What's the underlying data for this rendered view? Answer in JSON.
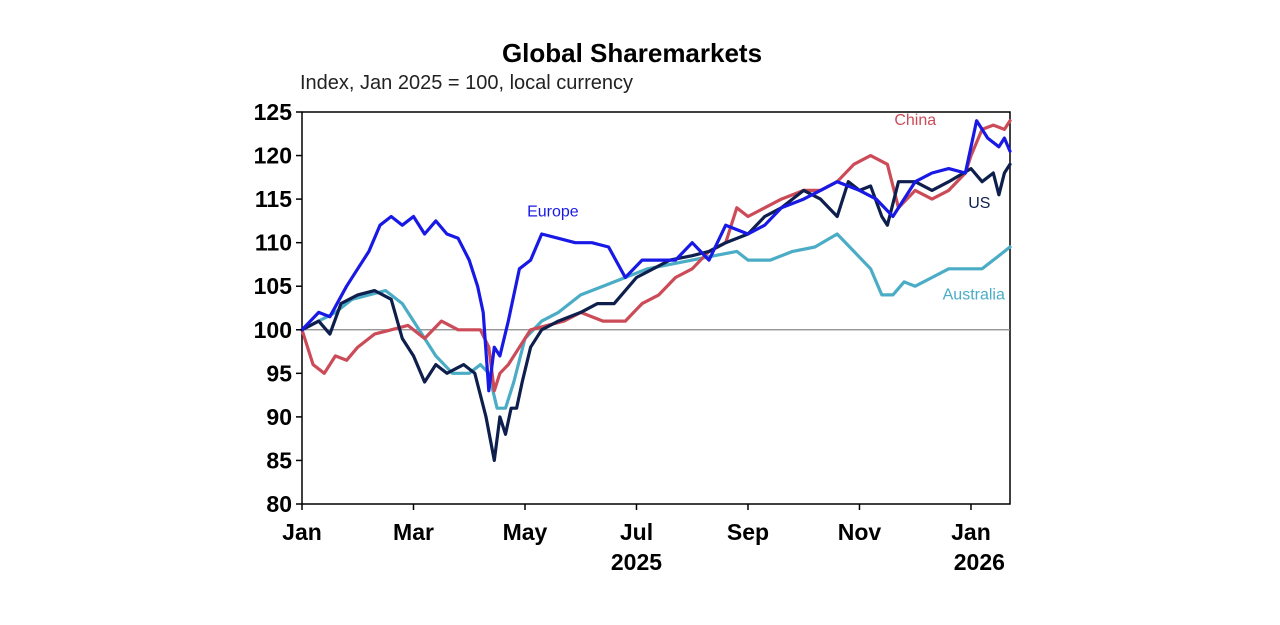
{
  "chart_data": {
    "type": "line",
    "title": "Global Sharemarkets",
    "subtitle": "Index, Jan 2025 = 100, local currency",
    "xlabel": "",
    "ylabel": "",
    "ylim": [
      80,
      125
    ],
    "yticks": [
      "125",
      "120",
      "115",
      "110",
      "105",
      "100",
      "95",
      "90",
      "85",
      "80"
    ],
    "ytick_values": [
      125,
      120,
      115,
      110,
      105,
      100,
      95,
      90,
      85,
      80
    ],
    "xlim": [
      0,
      12.7
    ],
    "x_units": "months since Jan 2025",
    "xticks": [
      {
        "label": "Jan",
        "x": 0
      },
      {
        "label": "Mar",
        "x": 2
      },
      {
        "label": "May",
        "x": 4
      },
      {
        "label": "Jul",
        "x": 6
      },
      {
        "label": "Sep",
        "x": 8
      },
      {
        "label": "Nov",
        "x": 10
      },
      {
        "label": "Jan",
        "x": 12
      }
    ],
    "year_labels": [
      {
        "label": "2025",
        "x": 6
      },
      {
        "label": "2026",
        "x": 12.15
      }
    ],
    "reference_line": 100,
    "grid": false,
    "series": [
      {
        "name": "US",
        "color": "#0e1f4d",
        "x": [
          0,
          0.3,
          0.5,
          0.7,
          1.0,
          1.3,
          1.6,
          1.8,
          2.0,
          2.2,
          2.4,
          2.6,
          2.9,
          3.1,
          3.3,
          3.45,
          3.55,
          3.65,
          3.75,
          3.85,
          3.95,
          4.1,
          4.3,
          4.6,
          5.0,
          5.3,
          5.6,
          6.0,
          6.3,
          6.6,
          7.0,
          7.3,
          7.6,
          8.0,
          8.3,
          8.6,
          9.0,
          9.3,
          9.6,
          9.8,
          10.0,
          10.2,
          10.4,
          10.5,
          10.7,
          11.0,
          11.3,
          11.6,
          12.0,
          12.2,
          12.4,
          12.5,
          12.6,
          12.7
        ],
        "y": [
          100,
          101,
          99.5,
          103,
          104,
          104.5,
          103.5,
          99,
          97,
          94,
          96,
          95,
          96,
          95,
          90,
          85,
          90,
          88,
          91,
          91,
          94,
          98,
          100,
          101,
          102,
          103,
          103,
          106,
          107,
          108,
          108.5,
          109,
          110,
          111,
          113,
          114,
          116,
          115,
          113,
          117,
          116,
          116.5,
          113,
          112,
          117,
          117,
          116,
          117,
          118.5,
          117,
          118,
          115.5,
          118,
          119
        ]
      },
      {
        "name": "Europe",
        "color": "#1919e6",
        "x": [
          0,
          0.3,
          0.5,
          0.8,
          1.0,
          1.2,
          1.4,
          1.6,
          1.8,
          2.0,
          2.2,
          2.4,
          2.6,
          2.8,
          3.0,
          3.15,
          3.25,
          3.35,
          3.45,
          3.55,
          3.7,
          3.9,
          4.1,
          4.3,
          4.6,
          4.9,
          5.2,
          5.5,
          5.8,
          6.1,
          6.4,
          6.7,
          7.0,
          7.3,
          7.6,
          8.0,
          8.3,
          8.6,
          9.0,
          9.3,
          9.6,
          10.0,
          10.3,
          10.6,
          11.0,
          11.3,
          11.6,
          11.9,
          12.1,
          12.3,
          12.5,
          12.6,
          12.7
        ],
        "y": [
          100,
          102,
          101.5,
          105,
          107,
          109,
          112,
          113,
          112,
          113,
          111,
          112.5,
          111,
          110.5,
          108,
          105,
          102,
          93,
          98,
          97,
          101,
          107,
          108,
          111,
          110.5,
          110,
          110,
          109.5,
          106,
          108,
          108,
          108,
          110,
          108,
          112,
          111,
          112,
          114,
          115,
          116,
          117,
          116,
          115,
          113,
          117,
          118,
          118.5,
          118,
          124,
          122,
          121,
          122,
          120.5
        ]
      },
      {
        "name": "China",
        "color": "#cc4b58",
        "x": [
          0,
          0.2,
          0.4,
          0.6,
          0.8,
          1.0,
          1.3,
          1.6,
          1.9,
          2.2,
          2.5,
          2.8,
          3.0,
          3.2,
          3.35,
          3.45,
          3.55,
          3.7,
          3.9,
          4.1,
          4.4,
          4.7,
          5.0,
          5.4,
          5.8,
          6.1,
          6.4,
          6.7,
          7.0,
          7.3,
          7.6,
          7.8,
          8.0,
          8.3,
          8.6,
          9.0,
          9.3,
          9.6,
          9.9,
          10.2,
          10.5,
          10.7,
          11.0,
          11.3,
          11.6,
          11.9,
          12.0,
          12.2,
          12.4,
          12.6,
          12.7
        ],
        "y": [
          100,
          96,
          95,
          97,
          96.5,
          98,
          99.5,
          100,
          100.5,
          99,
          101,
          100,
          100,
          100,
          98,
          93,
          95,
          96,
          98,
          100,
          100.5,
          101,
          102,
          101,
          101,
          103,
          104,
          106,
          107,
          109,
          110,
          114,
          113,
          114,
          115,
          116,
          116,
          117,
          119,
          120,
          119,
          114,
          116,
          115,
          116,
          118,
          120,
          123,
          123.5,
          123,
          124
        ]
      },
      {
        "name": "Australia",
        "color": "#4bacc6",
        "x": [
          0,
          0.3,
          0.6,
          0.9,
          1.2,
          1.5,
          1.8,
          2.1,
          2.4,
          2.7,
          3.0,
          3.2,
          3.35,
          3.5,
          3.65,
          3.8,
          4.0,
          4.3,
          4.6,
          5.0,
          5.4,
          5.8,
          6.2,
          6.6,
          7.0,
          7.4,
          7.8,
          8.0,
          8.4,
          8.8,
          9.2,
          9.6,
          9.9,
          10.2,
          10.4,
          10.6,
          10.8,
          11.0,
          11.3,
          11.6,
          11.9,
          12.2,
          12.5,
          12.7
        ],
        "y": [
          100,
          101,
          102,
          103.5,
          104,
          104.5,
          103,
          100,
          97,
          95,
          95,
          96,
          95,
          91,
          91,
          94,
          99,
          101,
          102,
          104,
          105,
          106,
          107,
          107.5,
          108,
          108.5,
          109,
          108,
          108,
          109,
          109.5,
          111,
          109,
          107,
          104,
          104,
          105.5,
          105,
          106,
          107,
          107,
          107,
          108.5,
          109.5
        ]
      }
    ],
    "series_labels": [
      {
        "series": "Europe",
        "text": "Europe",
        "x": 4.5,
        "y": 113
      },
      {
        "series": "China",
        "text": "China",
        "x": 11.0,
        "y": 123.5
      },
      {
        "series": "US",
        "text": "US",
        "x": 12.15,
        "y": 114
      },
      {
        "series": "Australia",
        "text": "Australia",
        "x": 12.05,
        "y": 103.5
      }
    ]
  }
}
